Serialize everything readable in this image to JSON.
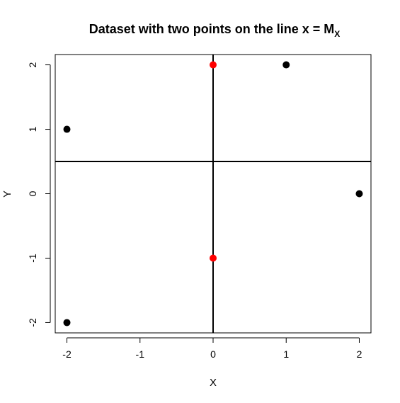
{
  "chart_data": {
    "type": "scatter",
    "title": {
      "main": "Dataset with two points on the line x = M",
      "subscript": "X"
    },
    "xlabel": "X",
    "ylabel": "Y",
    "xlim": [
      -2.16,
      2.16
    ],
    "ylim": [
      -2.16,
      2.16
    ],
    "x_ticks": [
      {
        "value": -2,
        "label": "-2"
      },
      {
        "value": -1,
        "label": "-1"
      },
      {
        "value": 0,
        "label": "0"
      },
      {
        "value": 1,
        "label": "1"
      },
      {
        "value": 2,
        "label": "2"
      }
    ],
    "y_ticks": [
      {
        "value": -2,
        "label": "-2"
      },
      {
        "value": -1,
        "label": "-1"
      },
      {
        "value": 0,
        "label": "0"
      },
      {
        "value": 1,
        "label": "1"
      },
      {
        "value": 2,
        "label": "2"
      }
    ],
    "reference_lines": {
      "vertical_x": 0,
      "horizontal_y": 0.5
    },
    "series": [
      {
        "color": "#000000",
        "points": [
          {
            "x": -2,
            "y": 1
          },
          {
            "x": 1,
            "y": 2
          },
          {
            "x": 2,
            "y": 0
          },
          {
            "x": -2,
            "y": -2
          }
        ]
      },
      {
        "color": "#ff0000",
        "points": [
          {
            "x": 0,
            "y": 2
          },
          {
            "x": 0,
            "y": -1
          }
        ]
      }
    ],
    "grid": false,
    "legend": "none",
    "box": true
  }
}
